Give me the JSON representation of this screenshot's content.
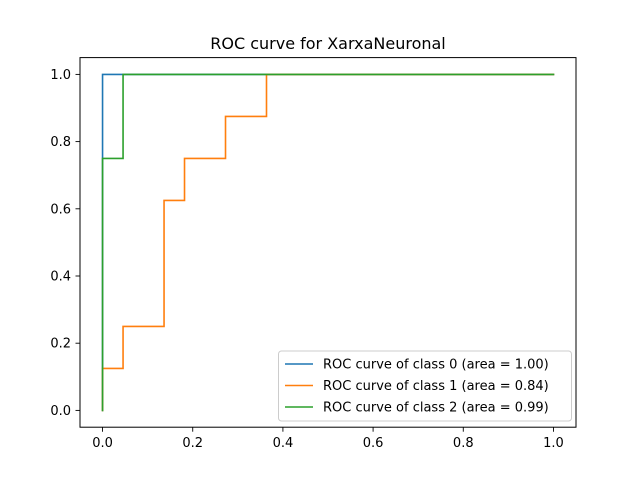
{
  "chart_data": {
    "type": "line",
    "title": "ROC curve for XarxaNeuronal",
    "xlabel": "",
    "ylabel": "",
    "xlim": [
      -0.05,
      1.05
    ],
    "ylim": [
      -0.05,
      1.05
    ],
    "x_ticks": [
      "0.0",
      "0.2",
      "0.4",
      "0.6",
      "0.8",
      "1.0"
    ],
    "y_ticks": [
      "0.0",
      "0.2",
      "0.4",
      "0.6",
      "0.8",
      "1.0"
    ],
    "grid": false,
    "legend_position": "lower-right",
    "series": [
      {
        "name": "ROC curve of class 0 (area = 1.00)",
        "color": "#1f77b4",
        "x": [
          0.0,
          0.0,
          0.0455,
          1.0
        ],
        "y": [
          0.0,
          1.0,
          1.0,
          1.0
        ]
      },
      {
        "name": "ROC curve of class 1 (area = 0.84)",
        "color": "#ff7f0e",
        "x": [
          0.0,
          0.0,
          0.0455,
          0.0455,
          0.1364,
          0.1364,
          0.1818,
          0.1818,
          0.2727,
          0.2727,
          0.3636,
          0.3636,
          1.0
        ],
        "y": [
          0.0,
          0.125,
          0.125,
          0.25,
          0.25,
          0.625,
          0.625,
          0.75,
          0.75,
          0.875,
          0.875,
          1.0,
          1.0
        ]
      },
      {
        "name": "ROC curve of class 2 (area = 0.99)",
        "color": "#2ca02c",
        "x": [
          0.0,
          0.0,
          0.0455,
          0.0455,
          1.0
        ],
        "y": [
          0.0,
          0.75,
          0.75,
          1.0,
          1.0
        ]
      }
    ]
  }
}
